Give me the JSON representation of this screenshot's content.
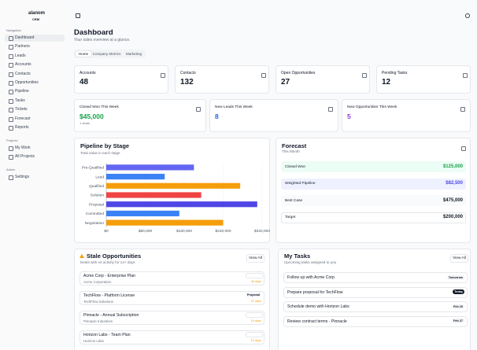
{
  "sidebar": {
    "brand": "alanom",
    "sub": "CRM",
    "sections": [
      {
        "title": "Navigation",
        "items": [
          "Dashboard",
          "Partners",
          "Leads",
          "Accounts",
          "Contacts",
          "Opportunities",
          "Pipeline",
          "Tasks",
          "Tickets",
          "Forecast",
          "Reports"
        ]
      },
      {
        "title": "Projects",
        "items": [
          "My Work",
          "All Projects"
        ]
      },
      {
        "title": "Admin",
        "items": [
          "Settings"
        ]
      }
    ]
  },
  "header": {
    "title": "Dashboard",
    "subtitle": "Your sales overview at a glance."
  },
  "tabs": [
    "Home",
    "Company Metrics",
    "Marketing"
  ],
  "stats": [
    {
      "label": "Accounts",
      "value": 48
    },
    {
      "label": "Contacts",
      "value": 132
    },
    {
      "label": "Open Opportunities",
      "value": 27
    },
    {
      "label": "Pending Tasks",
      "value": 12
    }
  ],
  "weekly": [
    {
      "label": "Closed Won This Week",
      "value": "$45,000",
      "note": "1 deals",
      "color": "#16a34a"
    },
    {
      "label": "New Leads This Week",
      "value": "8",
      "color": "#2563eb"
    },
    {
      "label": "New Opportunities This Week",
      "value": "5",
      "color": "#9333ea"
    }
  ],
  "chart_data": {
    "type": "bar",
    "title": "Pipeline by Stage",
    "subtitle": "Total value in each stage",
    "categories": [
      "Pre-Qualified",
      "Lead",
      "Qualified",
      "Solution",
      "Proposal",
      "Committed",
      "Negotiation"
    ],
    "values": [
      180000,
      120000,
      275000,
      195000,
      310000,
      150000,
      240000
    ],
    "colors": [
      "#6366f1",
      "#3b82f6",
      "#f59e0b",
      "#ef4444",
      "#4f46e5",
      "#3b82f6",
      "#f59e0b"
    ],
    "xlim": [
      0,
      320000
    ],
    "xticks": [
      {
        "value": 0,
        "label": "$0"
      },
      {
        "value": 80000,
        "label": "$80,000"
      },
      {
        "value": 160000,
        "label": "$160,000"
      },
      {
        "value": 240000,
        "label": "$240,000"
      },
      {
        "value": 320000,
        "label": "$320,000"
      }
    ],
    "grid": true
  },
  "forecast": {
    "title": "Forecast",
    "subtitle": "This Month",
    "rows": [
      {
        "label": "Closed Won",
        "value": "$125,000",
        "bg": "#ecfdf5",
        "color": "#16a34a"
      },
      {
        "label": "Weighted Pipeline",
        "value": "$82,500",
        "bg": "#eef2ff",
        "color": "#4f46e5"
      },
      {
        "label": "Best Case",
        "value": "$475,000",
        "bg": "#f9fafb",
        "color": "#111827"
      },
      {
        "label": "Target",
        "value": "$200,000",
        "bg": "#ffffff",
        "color": "#111827"
      }
    ]
  },
  "stale": {
    "title": "Stale Opportunities",
    "subtitle": "Deals with no activity for 14+ days",
    "button": "View All",
    "items": [
      {
        "name": "Acme Corp - Enterprise Plan",
        "company": "Acme Corporation",
        "age": "45 days"
      },
      {
        "name": "TechFlow - Platform License",
        "company": "TechFlow Solutions",
        "stage": "Proposal",
        "age": "21 days"
      },
      {
        "name": "Pinnacle - Annual Subscription",
        "company": "Pinnacle Industries",
        "age": "16 days"
      },
      {
        "name": "Horizon Labs - Team Plan",
        "company": "Horizon Labs",
        "age": "15 days"
      }
    ]
  },
  "tasks": {
    "title": "My Tasks",
    "subtitle": "Upcoming tasks assigned to you",
    "button": "View All",
    "items": [
      {
        "title": "Follow up with Acme Corp",
        "due": "Tomorrow"
      },
      {
        "title": "Prepare proposal for TechFlow",
        "due": "Today",
        "dark": true
      },
      {
        "title": "Schedule demo with Horizon Labs",
        "due": "Feb 20"
      },
      {
        "title": "Review contract terms - Pinnacle",
        "due": "Feb 27"
      }
    ]
  }
}
